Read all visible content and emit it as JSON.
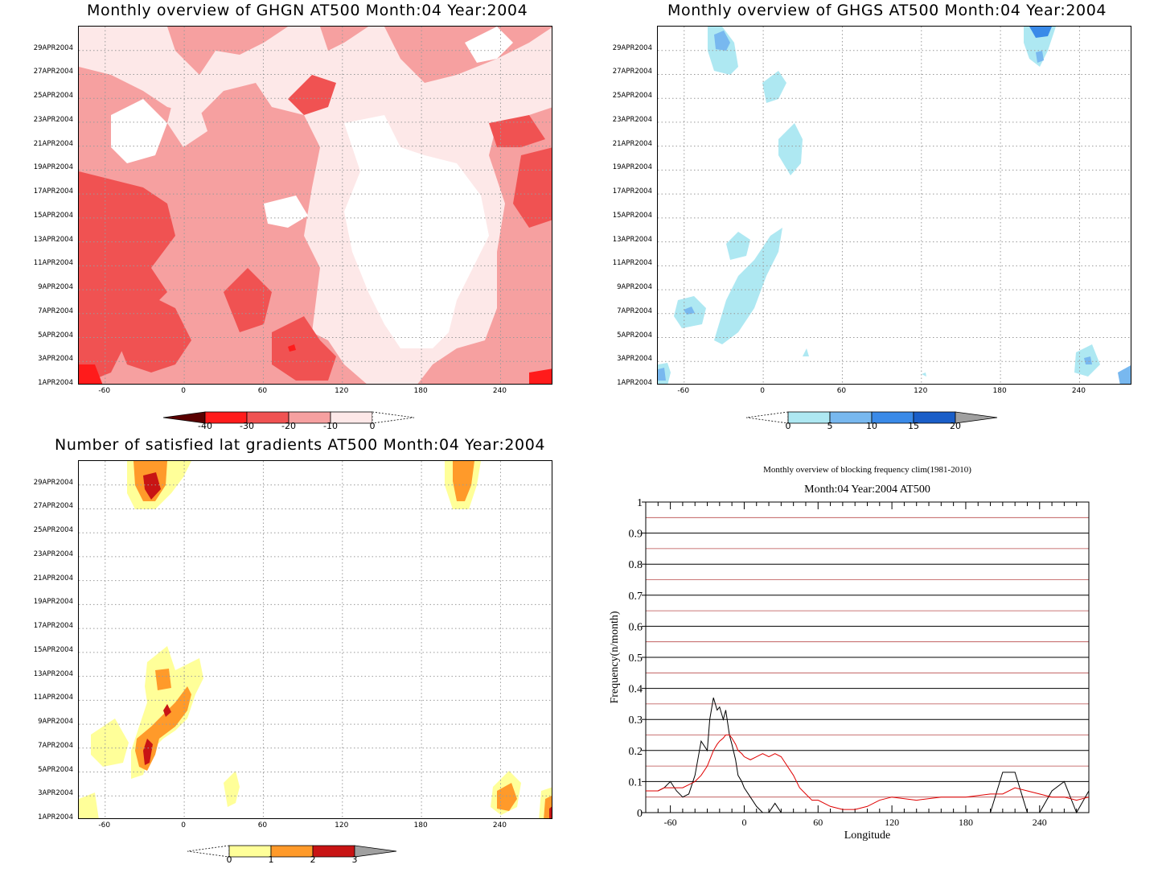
{
  "chart_data": [
    {
      "type": "heatmap",
      "title": "Monthly overview of GHGN AT500 Month:04 Year:2004",
      "y_tick_labels": [
        "1APR2004",
        "3APR2004",
        "5APR2004",
        "7APR2004",
        "9APR2004",
        "11APR2004",
        "13APR2004",
        "15APR2004",
        "17APR2004",
        "19APR2004",
        "21APR2004",
        "23APR2004",
        "25APR2004",
        "27APR2004",
        "29APR2004"
      ],
      "x_tick_labels": [
        "-60",
        "0",
        "60",
        "120",
        "180",
        "240"
      ],
      "xlim": [
        -80,
        280
      ],
      "colorbar": {
        "levels": [
          "-40",
          "-30",
          "-20",
          "-10",
          "0"
        ],
        "colors": [
          "#5a0000",
          "#ff1b1b",
          "#f05252",
          "#f6a0a0",
          "#fde8e8",
          "#ffffff"
        ]
      }
    },
    {
      "type": "heatmap",
      "title": "Monthly overview of GHGS AT500 Month:04 Year:2004",
      "y_tick_labels": [
        "1APR2004",
        "3APR2004",
        "5APR2004",
        "7APR2004",
        "9APR2004",
        "11APR2004",
        "13APR2004",
        "15APR2004",
        "17APR2004",
        "19APR2004",
        "21APR2004",
        "23APR2004",
        "25APR2004",
        "27APR2004",
        "29APR2004"
      ],
      "x_tick_labels": [
        "-60",
        "0",
        "60",
        "120",
        "180",
        "240"
      ],
      "xlim": [
        -80,
        280
      ],
      "colorbar": {
        "levels": [
          "0",
          "5",
          "10",
          "15",
          "20"
        ],
        "colors": [
          "#ffffff",
          "#aee8f2",
          "#78b8ef",
          "#3a8ae8",
          "#1a5ec8",
          "#a0a0a0"
        ]
      }
    },
    {
      "type": "heatmap",
      "title": "Number of satisfied lat gradients AT500 Month:04 Year:2004",
      "y_tick_labels": [
        "1APR2004",
        "3APR2004",
        "5APR2004",
        "7APR2004",
        "9APR2004",
        "11APR2004",
        "13APR2004",
        "15APR2004",
        "17APR2004",
        "19APR2004",
        "21APR2004",
        "23APR2004",
        "25APR2004",
        "27APR2004",
        "29APR2004"
      ],
      "x_tick_labels": [
        "-60",
        "0",
        "60",
        "120",
        "180",
        "240"
      ],
      "xlim": [
        -80,
        280
      ],
      "colorbar": {
        "levels": [
          "0",
          "1",
          "2",
          "3"
        ],
        "colors": [
          "#ffffff",
          "#ffff99",
          "#ff9a2a",
          "#c81414",
          "#a0a0a0"
        ]
      }
    },
    {
      "type": "line",
      "title": "Monthly overview of blocking frequency clim(1981-2010)",
      "subtitle": "Month:04 Year:2004  AT500",
      "xlabel": "Longitude",
      "ylabel": "Frequency(n/month)",
      "xlim": [
        -80,
        280
      ],
      "ylim": [
        0,
        1
      ],
      "x_tick_labels": [
        "-60",
        "0",
        "60",
        "120",
        "180",
        "240"
      ],
      "y_tick_labels": [
        "0",
        "0.1",
        "0.2",
        "0.3",
        "0.4",
        "0.5",
        "0.6",
        "0.7",
        "0.8",
        "0.9",
        "1"
      ],
      "x": [
        -80,
        -70,
        -65,
        -60,
        -55,
        -50,
        -45,
        -40,
        -35,
        -30,
        -28,
        -25,
        -22,
        -20,
        -17,
        -15,
        -12,
        -10,
        -7,
        -5,
        -2,
        0,
        5,
        10,
        15,
        20,
        25,
        30,
        35,
        40,
        45,
        50,
        55,
        60,
        70,
        80,
        90,
        100,
        110,
        120,
        140,
        160,
        180,
        200,
        210,
        220,
        230,
        240,
        250,
        260,
        270,
        280
      ],
      "series": [
        {
          "color": "#000000",
          "values": [
            0.07,
            0.07,
            0.08,
            0.1,
            0.07,
            0.05,
            0.06,
            0.12,
            0.23,
            0.2,
            0.3,
            0.37,
            0.33,
            0.34,
            0.3,
            0.33,
            0.25,
            0.22,
            0.17,
            0.12,
            0.1,
            0.08,
            0.05,
            0.02,
            0.0,
            0.0,
            0.03,
            0.0,
            0.0,
            0.0,
            0.0,
            0.0,
            0.0,
            0.0,
            0.0,
            0.0,
            0.0,
            0.0,
            0.0,
            0.0,
            0.0,
            0.0,
            0.0,
            0.0,
            0.13,
            0.13,
            0.0,
            0.0,
            0.07,
            0.1,
            0.0,
            0.07
          ]
        },
        {
          "color": "#e00000",
          "values": [
            0.07,
            0.07,
            0.08,
            0.08,
            0.08,
            0.08,
            0.09,
            0.1,
            0.12,
            0.15,
            0.17,
            0.2,
            0.22,
            0.23,
            0.24,
            0.25,
            0.25,
            0.24,
            0.22,
            0.2,
            0.19,
            0.18,
            0.17,
            0.18,
            0.19,
            0.18,
            0.19,
            0.18,
            0.15,
            0.12,
            0.08,
            0.06,
            0.04,
            0.04,
            0.02,
            0.01,
            0.01,
            0.02,
            0.04,
            0.05,
            0.04,
            0.05,
            0.05,
            0.06,
            0.06,
            0.08,
            0.07,
            0.06,
            0.05,
            0.05,
            0.04,
            0.05
          ]
        }
      ]
    }
  ]
}
